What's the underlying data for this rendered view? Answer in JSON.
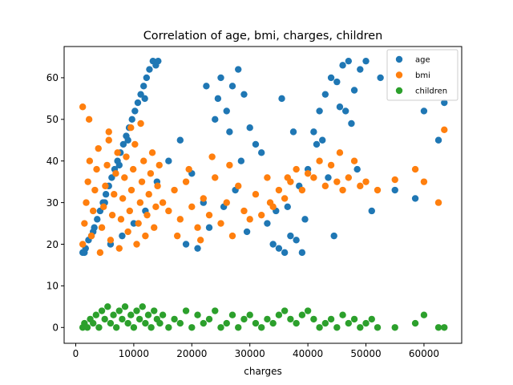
{
  "chart_data": {
    "type": "scatter",
    "title": "Correlation of age, bmi, charges, children",
    "xlabel": "charges",
    "ylabel": "",
    "xlim": [
      -2000,
      66500
    ],
    "ylim": [
      -3.8,
      67.5
    ],
    "xticks": [
      0,
      10000,
      20000,
      30000,
      40000,
      50000,
      60000
    ],
    "xtick_labels": [
      "0",
      "10000",
      "20000",
      "30000",
      "40000",
      "50000",
      "60000"
    ],
    "yticks": [
      0,
      10,
      20,
      30,
      40,
      50,
      60
    ],
    "ytick_labels": [
      "0",
      "10",
      "20",
      "30",
      "40",
      "50",
      "60"
    ],
    "grid": false,
    "legend_position": "top-right",
    "series": [
      {
        "name": "age",
        "color": "#1f77b4",
        "points": [
          [
            1200,
            18
          ],
          [
            1700,
            19
          ],
          [
            2200,
            21
          ],
          [
            2700,
            22
          ],
          [
            3200,
            24
          ],
          [
            3700,
            26
          ],
          [
            4200,
            28
          ],
          [
            4700,
            30
          ],
          [
            5200,
            32
          ],
          [
            5700,
            34
          ],
          [
            6200,
            36
          ],
          [
            6700,
            38
          ],
          [
            7200,
            40
          ],
          [
            7700,
            42
          ],
          [
            8200,
            44
          ],
          [
            8700,
            46
          ],
          [
            9200,
            48
          ],
          [
            9700,
            50
          ],
          [
            10200,
            52
          ],
          [
            10700,
            54
          ],
          [
            11200,
            56
          ],
          [
            11700,
            58
          ],
          [
            12200,
            60
          ],
          [
            12700,
            62
          ],
          [
            13300,
            64
          ],
          [
            14200,
            64
          ],
          [
            13800,
            63
          ],
          [
            11900,
            55
          ],
          [
            9000,
            45
          ],
          [
            7500,
            39
          ],
          [
            5000,
            30
          ],
          [
            3000,
            23
          ],
          [
            1500,
            18
          ],
          [
            6000,
            20
          ],
          [
            8000,
            22
          ],
          [
            10000,
            25
          ],
          [
            12000,
            28
          ],
          [
            14000,
            35
          ],
          [
            16000,
            40
          ],
          [
            18000,
            45
          ],
          [
            20000,
            37
          ],
          [
            22000,
            30
          ],
          [
            24000,
            50
          ],
          [
            25000,
            60
          ],
          [
            26000,
            52
          ],
          [
            27000,
            58
          ],
          [
            28000,
            62
          ],
          [
            29000,
            56
          ],
          [
            30000,
            48
          ],
          [
            31000,
            44
          ],
          [
            19000,
            20
          ],
          [
            21000,
            19
          ],
          [
            23000,
            24
          ],
          [
            25500,
            29
          ],
          [
            27500,
            33
          ],
          [
            29500,
            23
          ],
          [
            22500,
            58
          ],
          [
            24500,
            55
          ],
          [
            26500,
            47
          ],
          [
            28500,
            40
          ],
          [
            32000,
            42
          ],
          [
            33000,
            25
          ],
          [
            34000,
            20
          ],
          [
            35000,
            19
          ],
          [
            36000,
            18
          ],
          [
            37000,
            22
          ],
          [
            38000,
            21
          ],
          [
            39000,
            18
          ],
          [
            36500,
            29
          ],
          [
            38500,
            34
          ],
          [
            40000,
            38
          ],
          [
            41000,
            47
          ],
          [
            42000,
            52
          ],
          [
            43000,
            56
          ],
          [
            44000,
            60
          ],
          [
            45000,
            59
          ],
          [
            46000,
            63
          ],
          [
            47000,
            64
          ],
          [
            48000,
            57
          ],
          [
            49000,
            62
          ],
          [
            42500,
            45
          ],
          [
            44500,
            22
          ],
          [
            46500,
            52
          ],
          [
            47500,
            49
          ],
          [
            48500,
            38
          ],
          [
            50000,
            64
          ],
          [
            51000,
            28
          ],
          [
            52500,
            60
          ],
          [
            55000,
            33
          ],
          [
            58500,
            31
          ],
          [
            60000,
            52
          ],
          [
            62500,
            45
          ],
          [
            63500,
            54
          ],
          [
            35500,
            55
          ],
          [
            39500,
            26
          ],
          [
            41500,
            44
          ],
          [
            43500,
            36
          ],
          [
            45500,
            53
          ],
          [
            37500,
            47
          ],
          [
            34500,
            28
          ]
        ]
      },
      {
        "name": "bmi",
        "color": "#ff7f0e",
        "points": [
          [
            1200,
            20
          ],
          [
            1500,
            25
          ],
          [
            1800,
            30
          ],
          [
            2100,
            35
          ],
          [
            2400,
            40
          ],
          [
            2700,
            22
          ],
          [
            3000,
            28
          ],
          [
            3300,
            33
          ],
          [
            3600,
            38
          ],
          [
            3900,
            43
          ],
          [
            4200,
            18
          ],
          [
            4500,
            24
          ],
          [
            4800,
            29
          ],
          [
            5100,
            34
          ],
          [
            5400,
            39
          ],
          [
            5700,
            45
          ],
          [
            6000,
            21
          ],
          [
            6300,
            27
          ],
          [
            6600,
            32
          ],
          [
            6900,
            37
          ],
          [
            7200,
            42
          ],
          [
            7500,
            19
          ],
          [
            7800,
            26
          ],
          [
            8100,
            31
          ],
          [
            8400,
            36
          ],
          [
            8700,
            41
          ],
          [
            9000,
            23
          ],
          [
            9300,
            28
          ],
          [
            9600,
            33
          ],
          [
            9900,
            38
          ],
          [
            10200,
            44
          ],
          [
            10500,
            20
          ],
          [
            10800,
            25
          ],
          [
            11100,
            30
          ],
          [
            11400,
            35
          ],
          [
            11700,
            40
          ],
          [
            12000,
            22
          ],
          [
            12300,
            27
          ],
          [
            12600,
            32
          ],
          [
            12900,
            37
          ],
          [
            13200,
            42
          ],
          [
            13500,
            24
          ],
          [
            13800,
            29
          ],
          [
            14100,
            34
          ],
          [
            14400,
            39
          ],
          [
            1200,
            53
          ],
          [
            2300,
            50
          ],
          [
            5700,
            47
          ],
          [
            9500,
            48
          ],
          [
            11200,
            49
          ],
          [
            15000,
            30
          ],
          [
            16000,
            28
          ],
          [
            17000,
            33
          ],
          [
            18000,
            26
          ],
          [
            19000,
            35
          ],
          [
            20000,
            29
          ],
          [
            21000,
            24
          ],
          [
            22000,
            31
          ],
          [
            23000,
            27
          ],
          [
            24000,
            36
          ],
          [
            25000,
            25
          ],
          [
            26000,
            30
          ],
          [
            27000,
            22
          ],
          [
            28000,
            34
          ],
          [
            29000,
            28
          ],
          [
            30000,
            26
          ],
          [
            31000,
            32
          ],
          [
            32000,
            27
          ],
          [
            33000,
            36
          ],
          [
            34000,
            29
          ],
          [
            35000,
            33
          ],
          [
            36000,
            31
          ],
          [
            37000,
            35
          ],
          [
            38000,
            38
          ],
          [
            39000,
            33
          ],
          [
            40000,
            37
          ],
          [
            41000,
            36
          ],
          [
            42000,
            40
          ],
          [
            43000,
            34
          ],
          [
            44000,
            39
          ],
          [
            45000,
            35
          ],
          [
            46000,
            33
          ],
          [
            47000,
            36
          ],
          [
            48000,
            40
          ],
          [
            49000,
            34
          ],
          [
            50000,
            35
          ],
          [
            52000,
            33
          ],
          [
            55000,
            35.5
          ],
          [
            58500,
            38
          ],
          [
            60000,
            35
          ],
          [
            62500,
            30
          ],
          [
            63500,
            47.5
          ],
          [
            45500,
            42
          ],
          [
            36500,
            36
          ],
          [
            33500,
            30
          ],
          [
            19500,
            38
          ],
          [
            26500,
            39
          ],
          [
            23500,
            41
          ],
          [
            17500,
            22
          ],
          [
            21500,
            21
          ]
        ]
      },
      {
        "name": "children",
        "color": "#2ca02c",
        "points": [
          [
            1200,
            0
          ],
          [
            1500,
            1
          ],
          [
            2000,
            0
          ],
          [
            2500,
            2
          ],
          [
            3000,
            1
          ],
          [
            3500,
            3
          ],
          [
            4000,
            0
          ],
          [
            4500,
            4
          ],
          [
            5000,
            2
          ],
          [
            5500,
            5
          ],
          [
            6000,
            1
          ],
          [
            6500,
            3
          ],
          [
            7000,
            0
          ],
          [
            7500,
            4
          ],
          [
            8000,
            2
          ],
          [
            8500,
            5
          ],
          [
            9000,
            1
          ],
          [
            9500,
            3
          ],
          [
            10000,
            0
          ],
          [
            10500,
            4
          ],
          [
            11000,
            2
          ],
          [
            11500,
            5
          ],
          [
            12000,
            1
          ],
          [
            12500,
            3
          ],
          [
            13000,
            0
          ],
          [
            13500,
            4
          ],
          [
            14000,
            2
          ],
          [
            14500,
            1
          ],
          [
            15000,
            3
          ],
          [
            16000,
            0
          ],
          [
            17000,
            2
          ],
          [
            18000,
            1
          ],
          [
            19000,
            4
          ],
          [
            20000,
            0
          ],
          [
            21000,
            3
          ],
          [
            22000,
            1
          ],
          [
            23000,
            2
          ],
          [
            24000,
            4
          ],
          [
            25000,
            0
          ],
          [
            26000,
            1
          ],
          [
            27000,
            3
          ],
          [
            28000,
            0
          ],
          [
            29000,
            2
          ],
          [
            30000,
            3
          ],
          [
            31000,
            1
          ],
          [
            32000,
            0
          ],
          [
            33000,
            2
          ],
          [
            34000,
            1
          ],
          [
            35000,
            3
          ],
          [
            36000,
            4
          ],
          [
            37000,
            2
          ],
          [
            38000,
            1
          ],
          [
            39000,
            3
          ],
          [
            40000,
            4
          ],
          [
            41000,
            2
          ],
          [
            42000,
            0
          ],
          [
            43000,
            1
          ],
          [
            44000,
            2
          ],
          [
            45000,
            0
          ],
          [
            46000,
            3
          ],
          [
            47000,
            1
          ],
          [
            48000,
            2
          ],
          [
            49000,
            0
          ],
          [
            50000,
            1
          ],
          [
            51000,
            2
          ],
          [
            52000,
            0
          ],
          [
            55000,
            0
          ],
          [
            58500,
            1
          ],
          [
            60000,
            3
          ],
          [
            62500,
            0
          ],
          [
            63500,
            0
          ]
        ]
      }
    ]
  }
}
